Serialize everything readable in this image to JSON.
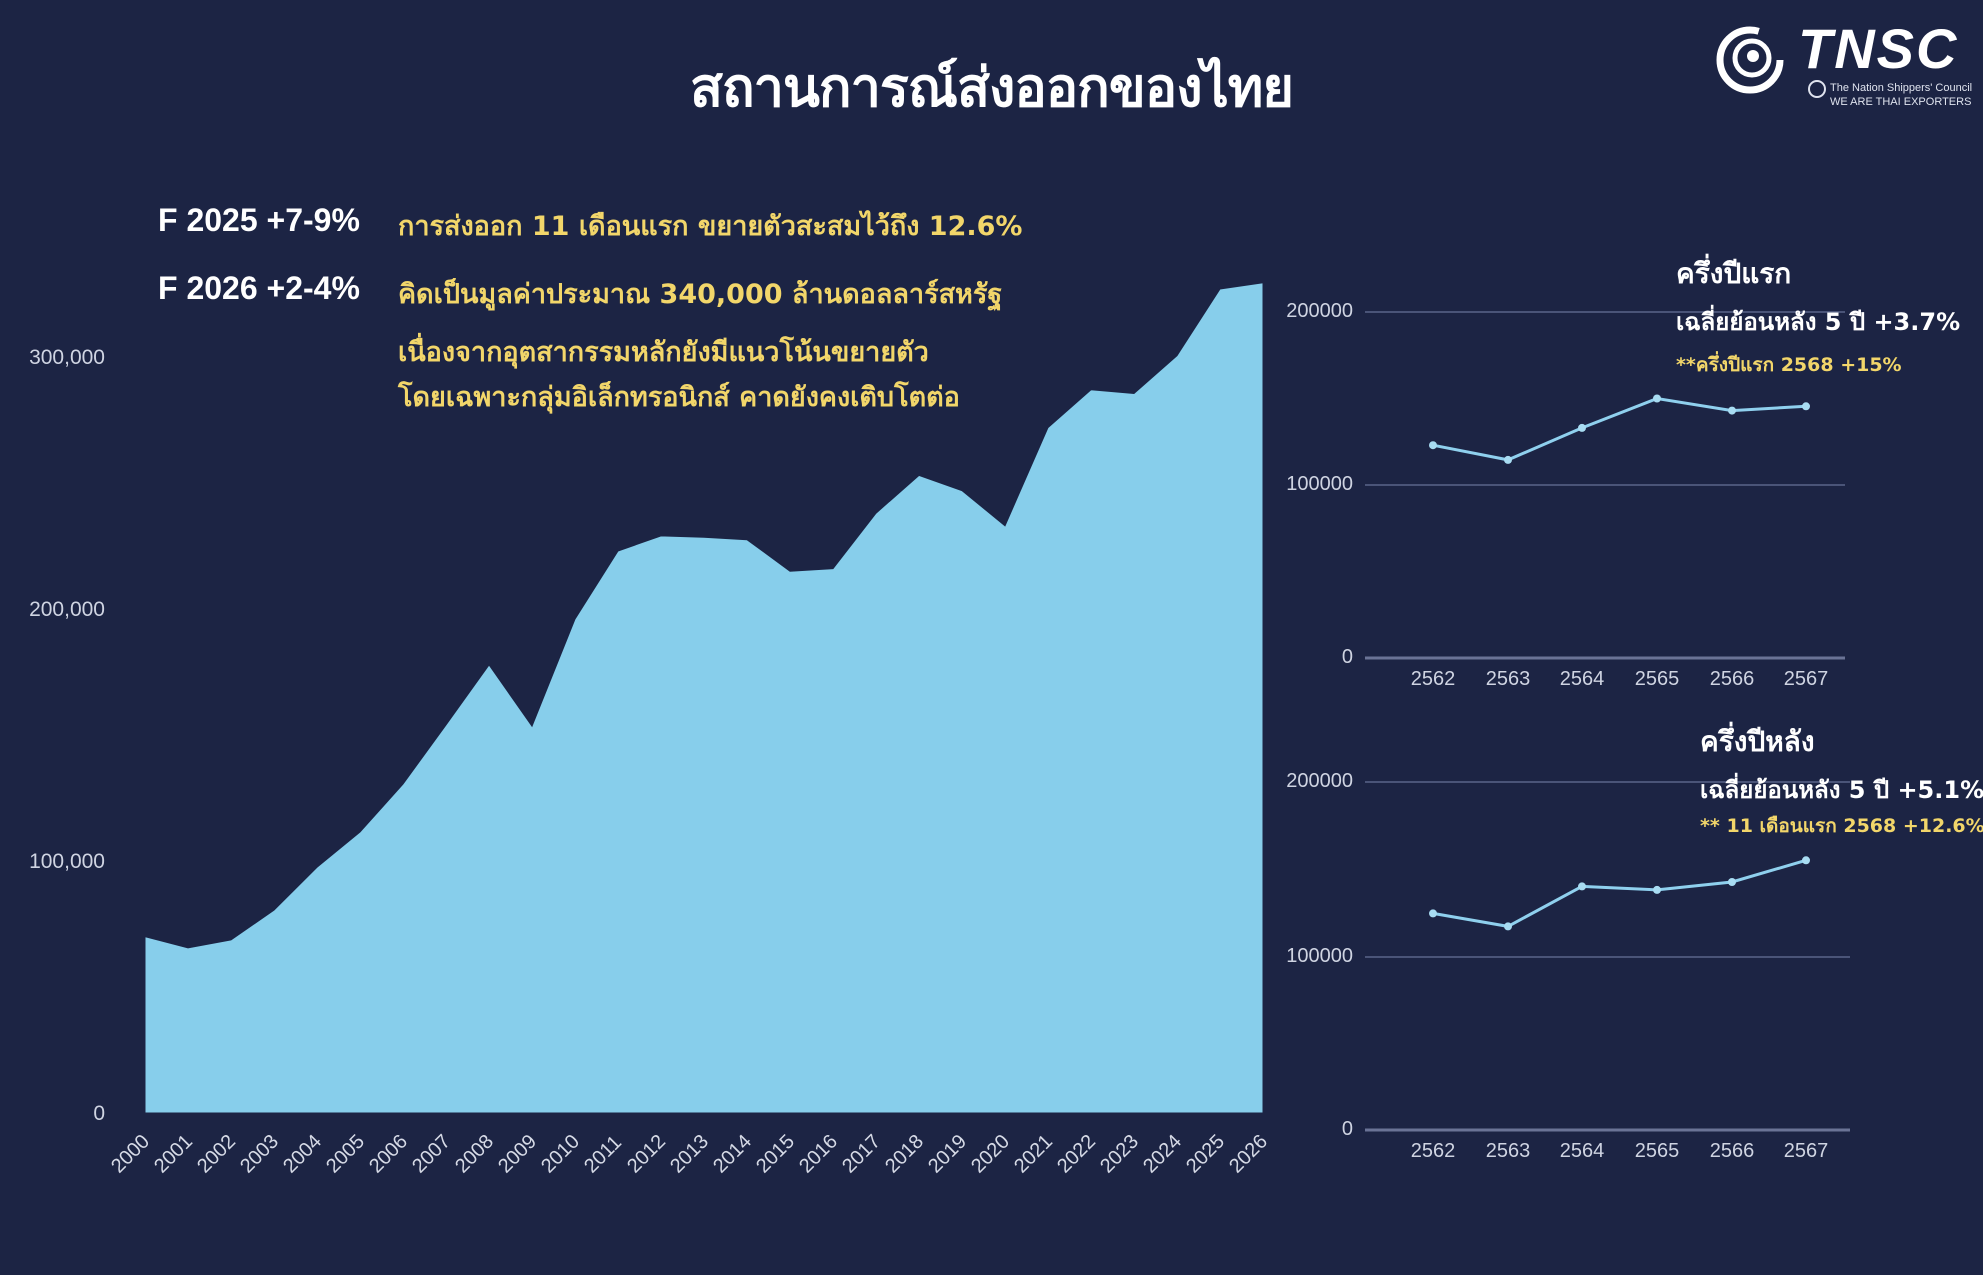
{
  "header": {
    "title": "สถานการณ์ส่งออกของไทย",
    "logo": {
      "text": "TNSC",
      "subtitle_1": "The Nation Shippers' Council",
      "subtitle_2": "WE ARE THAI EXPORTERS",
      "icon": "tnsc-swirl-logo-icon"
    }
  },
  "forecasts": [
    {
      "label": "F 2025 +7-9%"
    },
    {
      "label": "F 2026 +2-4%"
    }
  ],
  "notes": [
    "การส่งออก 11 เดือนแรก ขยายตัวสะสมไว้ถึง 12.6%",
    "คิดเป็นมูลค่าประมาณ 340,000 ล้านดอลลาร์สหรัฐ",
    "เนื่องจากอุตสากรรมหลักยังมีแนวโน้นขยายตัว",
    "โดยเฉพาะกลุ่มอิเล็กทรอนิกส์ คาดยังคงเติบโตต่อ"
  ],
  "colors": {
    "background": "#1c2444",
    "area_fill": "#87ceeb",
    "line": "#8fd0ee",
    "accent_text": "#f2d66a",
    "gridline": "#4a5478"
  },
  "side_panels": {
    "first_half": {
      "title": "ครึ่งปีแรก",
      "subtitle": "เฉลี่ยย้อนหลัง 5 ปี  +3.7%",
      "note": "**ครึ่งปีแรก 2568 +15%"
    },
    "second_half": {
      "title": "ครึ่งปีหลัง",
      "subtitle": "เฉลี่ยย้อนหลัง 5 ปี  +5.1%",
      "note": "** 11 เดือนแรก 2568 +12.6%"
    }
  },
  "chart_data": [
    {
      "type": "area",
      "title": "สถานการณ์ส่งออกของไทย",
      "xlabel": "",
      "ylabel": "",
      "categories": [
        "2000",
        "2001",
        "2002",
        "2003",
        "2004",
        "2005",
        "2006",
        "2007",
        "2008",
        "2009",
        "2010",
        "2011",
        "2012",
        "2013",
        "2014",
        "2015",
        "2016",
        "2017",
        "2018",
        "2019",
        "2020",
        "2021",
        "2022",
        "2023",
        "2024",
        "2025",
        "2026"
      ],
      "values": [
        70000,
        65500,
        68700,
        80500,
        97500,
        111500,
        130500,
        154000,
        177800,
        153500,
        196000,
        223000,
        229000,
        228500,
        227500,
        215000,
        216000,
        238000,
        253000,
        247000,
        233000,
        272000,
        287000,
        285500,
        300500,
        327000,
        329500
      ],
      "yticks": [
        "0",
        "100,000",
        "200,000",
        "300,000"
      ],
      "ylim": [
        0,
        330000
      ],
      "grid": false,
      "legend": "none"
    },
    {
      "type": "line",
      "title": "ครึ่งปีแรก",
      "categories": [
        "2562",
        "2563",
        "2564",
        "2565",
        "2566",
        "2567"
      ],
      "values": [
        123000,
        114500,
        133000,
        150000,
        143000,
        145500
      ],
      "yticks": [
        "0",
        "100000",
        "200000"
      ],
      "ylim": [
        0,
        200000
      ],
      "grid": true,
      "annotations": [
        "เฉลี่ยย้อนหลัง 5 ปี  +3.7%",
        "**ครึ่งปีแรก 2568 +15%"
      ]
    },
    {
      "type": "line",
      "title": "ครึ่งปีหลัง",
      "categories": [
        "2562",
        "2563",
        "2564",
        "2565",
        "2566",
        "2567"
      ],
      "values": [
        124500,
        117000,
        140000,
        138000,
        142500,
        155000
      ],
      "yticks": [
        "0",
        "100000",
        "200000"
      ],
      "ylim": [
        0,
        200000
      ],
      "grid": true,
      "annotations": [
        "เฉลี่ยย้อนหลัง 5 ปี  +5.1%",
        "** 11 เดือนแรก 2568 +12.6%"
      ]
    }
  ]
}
